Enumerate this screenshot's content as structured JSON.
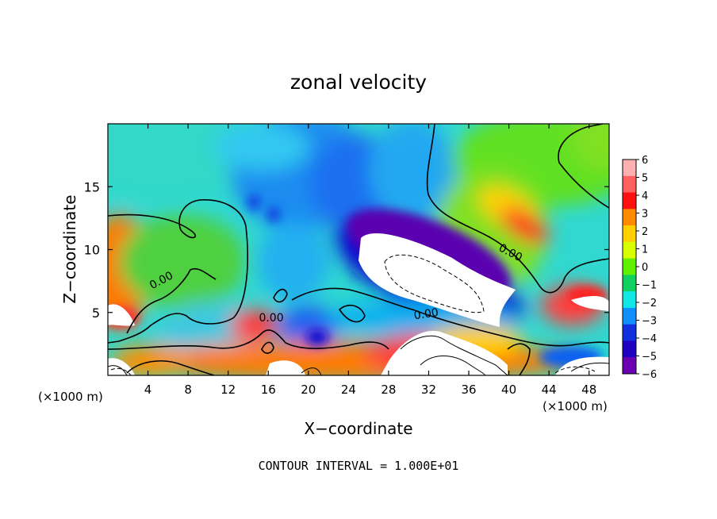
{
  "chart_data": {
    "type": "heatmap",
    "title": "zonal velocity",
    "xlabel": "X−coordinate",
    "ylabel": "Z−coordinate",
    "x_unit_left": "(×1000 m)",
    "x_unit_right": "(×1000 m)",
    "xlim": [
      0,
      50
    ],
    "ylim": [
      0,
      20
    ],
    "x_ticks": [
      4,
      8,
      12,
      16,
      20,
      24,
      28,
      32,
      36,
      40,
      44,
      48
    ],
    "x_tick_labels": [
      "4",
      "8",
      "12",
      "16",
      "20",
      "24",
      "28",
      "32",
      "36",
      "40",
      "44",
      "48"
    ],
    "y_ticks": [
      5,
      10,
      15
    ],
    "y_tick_labels": [
      "5",
      "10",
      "15"
    ],
    "colorbar": {
      "levels": [
        6,
        5,
        4,
        3,
        2,
        1,
        0,
        -1,
        -2,
        -3,
        -4,
        -5,
        -6
      ],
      "labels": [
        "6",
        "5",
        "4",
        "3",
        "2",
        "1",
        "0",
        "−1",
        "−2",
        "−3",
        "−4",
        "−5",
        "−6"
      ],
      "colors": [
        "#ffb0b0",
        "#ff6060",
        "#ff1010",
        "#ff8c00",
        "#ffd000",
        "#d8ff00",
        "#60f000",
        "#10d060",
        "#10e8e8",
        "#1090ff",
        "#1030e0",
        "#2000c0",
        "#6a00b0"
      ]
    },
    "contour_labels": [
      {
        "text": "0.00",
        "x": 5.5,
        "y": 7.3,
        "angle": -28
      },
      {
        "text": "0.00",
        "x": 16.3,
        "y": 4.3,
        "angle": 0
      },
      {
        "text": "0.00",
        "x": 31.8,
        "y": 4.6,
        "angle": -8
      },
      {
        "text": "0.00",
        "x": 40.0,
        "y": 9.5,
        "angle": 28
      }
    ],
    "contour_interval_text": "CONTOUR INTERVAL = 1.000E+01"
  }
}
